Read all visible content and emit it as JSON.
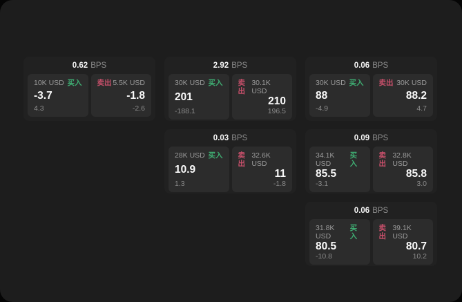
{
  "labels": {
    "buy": "买入",
    "sell": "卖出",
    "bps_unit": "BPS"
  },
  "colors": {
    "buy_accent": "#3fae73",
    "sell_accent": "#c9506b",
    "window_bg": "#1d1d1d",
    "card_bg": "#212121",
    "panel_bg": "#2c2c2c"
  },
  "cards": [
    {
      "bps": "0.62",
      "buy": {
        "amount": "10K USD",
        "value": "-3.7",
        "change": "4.3"
      },
      "sell": {
        "amount": "5.5K USD",
        "value": "-1.8",
        "change": "-2.6"
      }
    },
    {
      "bps": "2.92",
      "buy": {
        "amount": "30K USD",
        "value": "201",
        "change": "-188.1"
      },
      "sell": {
        "amount": "30.1K USD",
        "value": "210",
        "change": "196.5"
      }
    },
    {
      "bps": "0.06",
      "buy": {
        "amount": "30K USD",
        "value": "88",
        "change": "-4.9"
      },
      "sell": {
        "amount": "30K USD",
        "value": "88.2",
        "change": "4.7"
      }
    },
    {
      "bps": "0.03",
      "buy": {
        "amount": "28K USD",
        "value": "10.9",
        "change": "1.3"
      },
      "sell": {
        "amount": "32.6K USD",
        "value": "11",
        "change": "-1.8"
      }
    },
    {
      "bps": "0.09",
      "buy": {
        "amount": "34.1K USD",
        "value": "85.5",
        "change": "-3.1"
      },
      "sell": {
        "amount": "32.8K USD",
        "value": "85.8",
        "change": "3.0"
      }
    },
    {
      "bps": "0.06",
      "buy": {
        "amount": "31.8K USD",
        "value": "80.5",
        "change": "-10.8"
      },
      "sell": {
        "amount": "39.1K USD",
        "value": "80.7",
        "change": "10.2"
      }
    }
  ]
}
